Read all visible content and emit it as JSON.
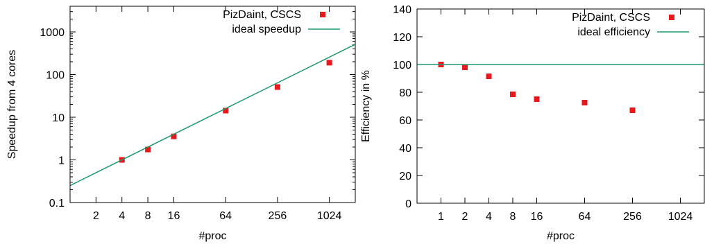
{
  "colors": {
    "points": "#e8191c",
    "ideal": "#1e9a6e",
    "axis": "#000000"
  },
  "chart_data": [
    {
      "type": "scatter",
      "xscale": "log",
      "yscale": "log",
      "xlabel": "#proc",
      "ylabel": "Speedup from 4 cores",
      "xlim": [
        1,
        2048
      ],
      "ylim": [
        0.1,
        4000
      ],
      "xticks": [
        2,
        4,
        8,
        16,
        64,
        256,
        1024
      ],
      "xtick_labels": [
        "2",
        "4",
        "8",
        "16",
        "64",
        "256",
        "1024"
      ],
      "yticks": [
        0.1,
        1,
        10,
        100,
        1000
      ],
      "ytick_labels": [
        "0.1",
        "1",
        "10",
        "100",
        "1000"
      ],
      "legend_position": "top-right",
      "series": [
        {
          "name": "PizDaint, CSCS",
          "kind": "points",
          "x": [
            4,
            8,
            16,
            64,
            256,
            1024
          ],
          "y": [
            1.0,
            1.75,
            3.55,
            14.3,
            51,
            190
          ]
        },
        {
          "name": "ideal speedup",
          "kind": "line",
          "x": [
            1,
            2048
          ],
          "y": [
            0.25,
            512
          ]
        }
      ]
    },
    {
      "type": "scatter",
      "xscale": "log",
      "yscale": "linear",
      "xlabel": "#proc",
      "ylabel": "Efficiency in %",
      "xlim": [
        0.5,
        2048
      ],
      "ylim": [
        0,
        140
      ],
      "xticks": [
        1,
        2,
        4,
        8,
        16,
        64,
        256,
        1024
      ],
      "xtick_labels": [
        "1",
        "2",
        "4",
        "8",
        "16",
        "64",
        "256",
        "1024"
      ],
      "yticks": [
        0,
        20,
        40,
        60,
        80,
        100,
        120,
        140
      ],
      "ytick_labels": [
        "0",
        "20",
        "40",
        "60",
        "80",
        "100",
        "120",
        "140"
      ],
      "legend_position": "top-right",
      "series": [
        {
          "name": "PizDaint, CSCS",
          "kind": "points",
          "x": [
            1,
            2,
            4,
            8,
            16,
            64,
            256
          ],
          "y": [
            100,
            98,
            91.5,
            78.5,
            75,
            72.5,
            67
          ]
        },
        {
          "name": "ideal efficiency",
          "kind": "line",
          "x": [
            0.5,
            2048
          ],
          "y": [
            100,
            100
          ]
        }
      ]
    }
  ]
}
